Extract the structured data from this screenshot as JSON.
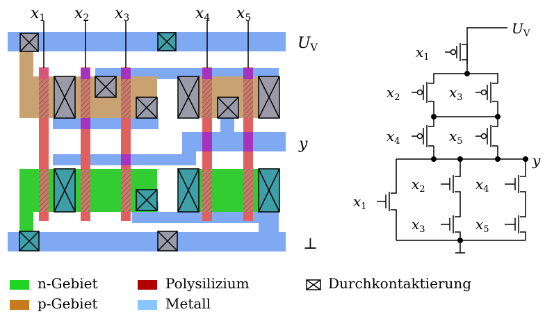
{
  "layout_labels": {
    "inputs": [
      "x",
      "x",
      "x",
      "x",
      "x"
    ],
    "input_subs": [
      "1",
      "2",
      "3",
      "4",
      "5"
    ],
    "supply": "U",
    "supply_sub": "V",
    "output": "y",
    "ground": "⊥"
  },
  "schematic_labels": {
    "supply": "U",
    "supply_sub": "V",
    "output": "y",
    "pmos": [
      {
        "var": "x",
        "sub": "1"
      },
      {
        "var": "x",
        "sub": "2"
      },
      {
        "var": "x",
        "sub": "3"
      },
      {
        "var": "x",
        "sub": "4"
      },
      {
        "var": "x",
        "sub": "5"
      }
    ],
    "nmos": [
      {
        "var": "x",
        "sub": "1"
      },
      {
        "var": "x",
        "sub": "2"
      },
      {
        "var": "x",
        "sub": "3"
      },
      {
        "var": "x",
        "sub": "4"
      },
      {
        "var": "x",
        "sub": "5"
      }
    ]
  },
  "legend": [
    {
      "label": "n-Gebiet",
      "color": "#21d421"
    },
    {
      "label": "p-Gebiet",
      "color": "#c87a1e"
    },
    {
      "label": "Polysilizium",
      "color": "#b20000"
    },
    {
      "label": "Metall",
      "color": "#88c6ff"
    },
    {
      "label": "Durchkontaktierung",
      "icon": "via-icon"
    }
  ],
  "colors": {
    "metal": "#7fa9f2",
    "p_region": "#c8a272",
    "n_region": "#33cc33",
    "poly": "#e06060",
    "poly_on_metal": "#a633bb"
  }
}
